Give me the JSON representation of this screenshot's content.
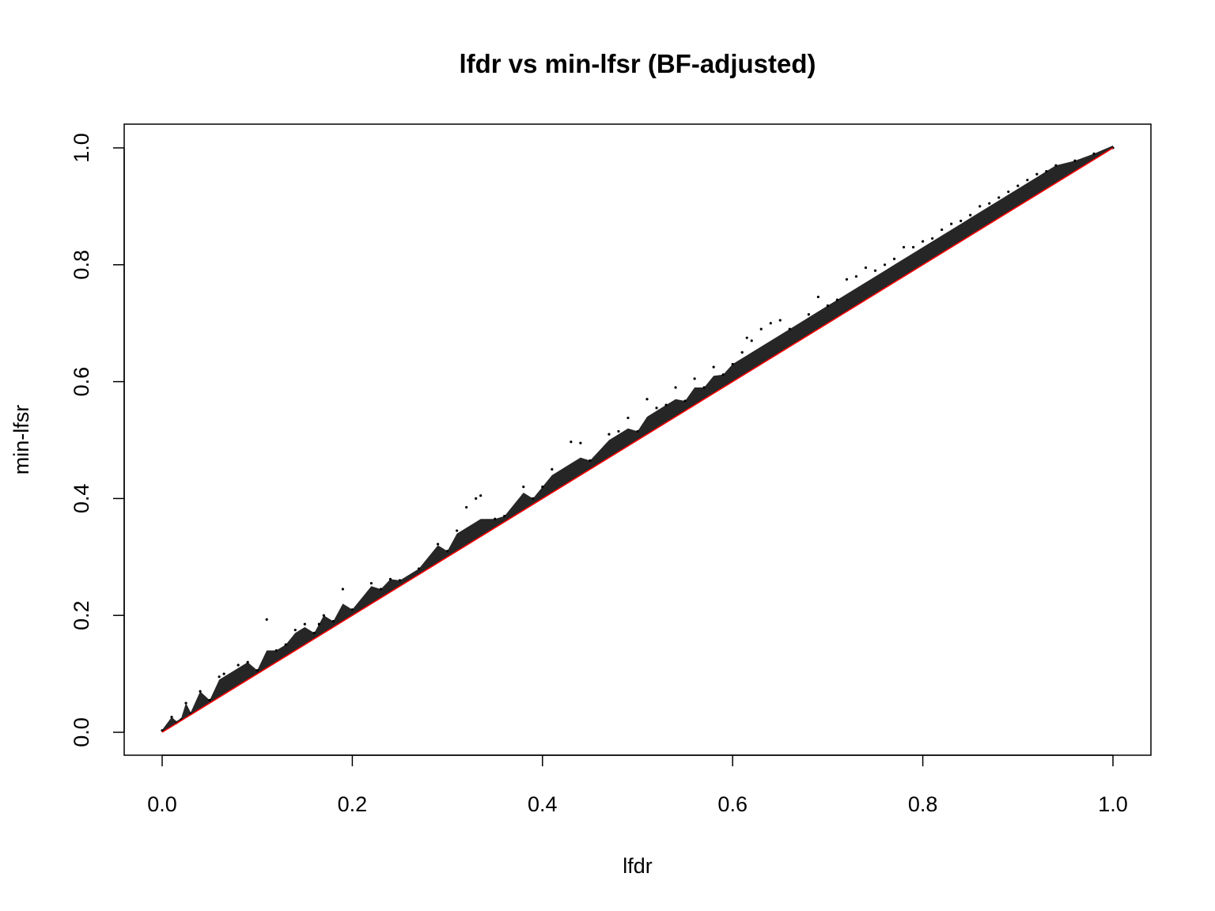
{
  "chart_data": {
    "type": "scatter",
    "title": "lfdr vs min-lfsr (BF-adjusted)",
    "xlabel": "lfdr",
    "ylabel": "min-lfsr",
    "xlim": [
      0,
      1
    ],
    "ylim": [
      0,
      1
    ],
    "x_ticks": [
      "0.0",
      "0.2",
      "0.4",
      "0.6",
      "0.8",
      "1.0"
    ],
    "y_ticks": [
      "0.0",
      "0.2",
      "0.4",
      "0.6",
      "0.8",
      "1.0"
    ],
    "grid": false,
    "legend": "none",
    "series": [
      {
        "points": [
          [
            0.0,
            0.003
          ],
          [
            0.01,
            0.026
          ],
          [
            0.015,
            0.016
          ],
          [
            0.02,
            0.022
          ],
          [
            0.025,
            0.05
          ],
          [
            0.03,
            0.032
          ],
          [
            0.04,
            0.07
          ],
          [
            0.05,
            0.055
          ],
          [
            0.06,
            0.095
          ],
          [
            0.065,
            0.1
          ],
          [
            0.08,
            0.115
          ],
          [
            0.09,
            0.12
          ],
          [
            0.1,
            0.106
          ],
          [
            0.11,
            0.193
          ],
          [
            0.12,
            0.14
          ],
          [
            0.13,
            0.15
          ],
          [
            0.14,
            0.175
          ],
          [
            0.15,
            0.185
          ],
          [
            0.16,
            0.17
          ],
          [
            0.165,
            0.185
          ],
          [
            0.17,
            0.2
          ],
          [
            0.18,
            0.19
          ],
          [
            0.19,
            0.245
          ],
          [
            0.2,
            0.21
          ],
          [
            0.22,
            0.255
          ],
          [
            0.23,
            0.245
          ],
          [
            0.24,
            0.262
          ],
          [
            0.25,
            0.26
          ],
          [
            0.27,
            0.28
          ],
          [
            0.29,
            0.322
          ],
          [
            0.3,
            0.31
          ],
          [
            0.31,
            0.345
          ],
          [
            0.32,
            0.385
          ],
          [
            0.33,
            0.4
          ],
          [
            0.335,
            0.405
          ],
          [
            0.35,
            0.365
          ],
          [
            0.36,
            0.37
          ],
          [
            0.38,
            0.42
          ],
          [
            0.39,
            0.4
          ],
          [
            0.4,
            0.42
          ],
          [
            0.41,
            0.45
          ],
          [
            0.43,
            0.497
          ],
          [
            0.44,
            0.495
          ],
          [
            0.45,
            0.465
          ],
          [
            0.47,
            0.51
          ],
          [
            0.48,
            0.515
          ],
          [
            0.49,
            0.538
          ],
          [
            0.5,
            0.515
          ],
          [
            0.51,
            0.57
          ],
          [
            0.52,
            0.555
          ],
          [
            0.53,
            0.56
          ],
          [
            0.54,
            0.59
          ],
          [
            0.55,
            0.567
          ],
          [
            0.56,
            0.605
          ],
          [
            0.57,
            0.59
          ],
          [
            0.58,
            0.625
          ],
          [
            0.59,
            0.612
          ],
          [
            0.6,
            0.63
          ],
          [
            0.61,
            0.65
          ],
          [
            0.615,
            0.675
          ],
          [
            0.62,
            0.67
          ],
          [
            0.63,
            0.69
          ],
          [
            0.64,
            0.7
          ],
          [
            0.65,
            0.705
          ],
          [
            0.66,
            0.69
          ],
          [
            0.68,
            0.715
          ],
          [
            0.69,
            0.745
          ],
          [
            0.7,
            0.73
          ],
          [
            0.71,
            0.74
          ],
          [
            0.72,
            0.775
          ],
          [
            0.73,
            0.78
          ],
          [
            0.74,
            0.795
          ],
          [
            0.75,
            0.79
          ],
          [
            0.76,
            0.8
          ],
          [
            0.77,
            0.81
          ],
          [
            0.78,
            0.83
          ],
          [
            0.79,
            0.83
          ],
          [
            0.8,
            0.84
          ],
          [
            0.81,
            0.845
          ],
          [
            0.82,
            0.86
          ],
          [
            0.83,
            0.87
          ],
          [
            0.84,
            0.875
          ],
          [
            0.85,
            0.885
          ],
          [
            0.86,
            0.9
          ],
          [
            0.87,
            0.905
          ],
          [
            0.88,
            0.915
          ],
          [
            0.89,
            0.925
          ],
          [
            0.9,
            0.935
          ],
          [
            0.91,
            0.945
          ],
          [
            0.92,
            0.955
          ],
          [
            0.93,
            0.96
          ],
          [
            0.94,
            0.97
          ],
          [
            0.96,
            0.978
          ],
          [
            0.98,
            0.99
          ],
          [
            1.0,
            1.0
          ]
        ]
      }
    ],
    "reference_line": {
      "type": "y = x",
      "color": "#ff0000"
    },
    "point_color": "#000000"
  }
}
